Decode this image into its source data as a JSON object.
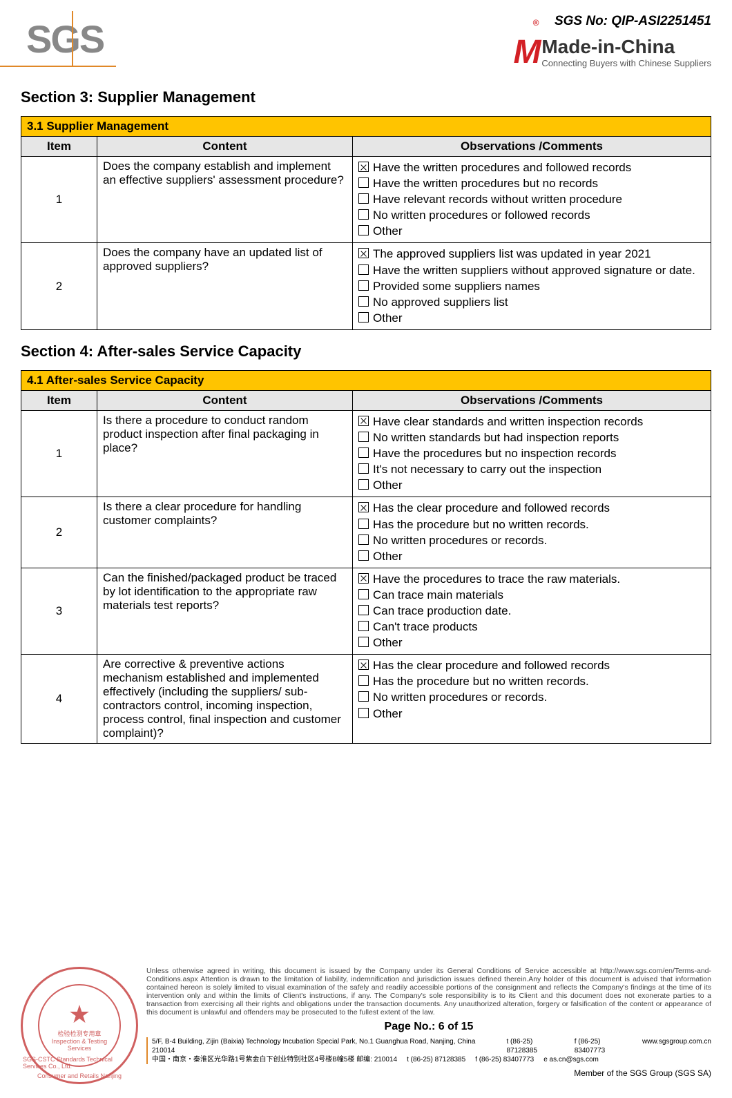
{
  "colors": {
    "accent": "#ffc400",
    "header_gray": "#e6e6e6",
    "sgs_gray": "#888888",
    "orange_rule": "#e08828",
    "mic_red": "#d32025",
    "seal_red": "#d06060"
  },
  "doc_no_label": "SGS No: QIP-ASI2251451",
  "sgs_logo_text": "SGS",
  "mic": {
    "main": "Made-in-China",
    "sub": "Connecting Buyers with Chinese Suppliers",
    "m": "M",
    "r": "®"
  },
  "section3": {
    "title": "Section 3: Supplier Management",
    "table_title": "3.1 Supplier Management",
    "headers": {
      "item": "Item",
      "content": "Content",
      "obs": "Observations /Comments"
    },
    "rows": [
      {
        "item": "1",
        "content": "Does the company establish and implement an effective suppliers' assessment procedure?",
        "options": [
          {
            "checked": true,
            "label": "Have the written procedures and followed records"
          },
          {
            "checked": false,
            "label": "Have the written procedures but no records"
          },
          {
            "checked": false,
            "label": "Have relevant records without written procedure"
          },
          {
            "checked": false,
            "label": "No written procedures or followed records"
          },
          {
            "checked": false,
            "label": "Other"
          }
        ]
      },
      {
        "item": "2",
        "content": "Does the company have an updated list of approved suppliers?",
        "options": [
          {
            "checked": true,
            "label": "The approved suppliers list was updated in year 2021"
          },
          {
            "checked": false,
            "label": "Have the written suppliers without approved signature or date."
          },
          {
            "checked": false,
            "label": "Provided some suppliers names"
          },
          {
            "checked": false,
            "label": "No approved suppliers list"
          },
          {
            "checked": false,
            "label": "Other"
          }
        ]
      }
    ]
  },
  "section4": {
    "title": "Section 4: After-sales Service Capacity",
    "table_title": "4.1 After-sales Service Capacity",
    "headers": {
      "item": "Item",
      "content": "Content",
      "obs": "Observations /Comments"
    },
    "rows": [
      {
        "item": "1",
        "content": "Is there a procedure to conduct random product inspection after final packaging in place?",
        "options": [
          {
            "checked": true,
            "label": "Have clear standards and written inspection records"
          },
          {
            "checked": false,
            "label": "No written standards but had inspection reports"
          },
          {
            "checked": false,
            "label": "Have the procedures but no inspection records"
          },
          {
            "checked": false,
            "label": "It's not necessary to carry out the inspection"
          },
          {
            "checked": false,
            "label": "Other"
          }
        ]
      },
      {
        "item": "2",
        "content": "Is there a clear procedure for handling customer complaints?",
        "options": [
          {
            "checked": true,
            "label": "Has the clear procedure and followed records"
          },
          {
            "checked": false,
            "label": "Has the procedure but no written records."
          },
          {
            "checked": false,
            "label": "No written procedures or records."
          },
          {
            "checked": false,
            "label": "Other"
          }
        ]
      },
      {
        "item": "3",
        "content": "Can the finished/packaged product be traced by lot identification to the appropriate raw materials test reports?",
        "options": [
          {
            "checked": true,
            "label": "Have the procedures to trace the raw materials."
          },
          {
            "checked": false,
            "label": "Can trace main materials"
          },
          {
            "checked": false,
            "label": "Can trace production date."
          },
          {
            "checked": false,
            "label": "Can't trace products"
          },
          {
            "checked": false,
            "label": "Other"
          }
        ]
      },
      {
        "item": "4",
        "content": "Are corrective & preventive actions mechanism established and implemented effectively (including the suppliers/ sub-contractors control, incoming inspection, process control, final inspection and customer complaint)?",
        "options": [
          {
            "checked": true,
            "label": "Has the clear procedure and followed records"
          },
          {
            "checked": false,
            "label": "Has the procedure but no written records."
          },
          {
            "checked": false,
            "label": "No written procedures or records."
          },
          {
            "checked": false,
            "label": "Other"
          }
        ]
      }
    ]
  },
  "footer": {
    "disclaimer": "Unless otherwise agreed in writing, this document is issued by the Company under its General Conditions of Service accessible at http://www.sgs.com/en/Terms-and-Conditions.aspx Attention is drawn to the limitation of liability, indemnification and jurisdiction issues defined therein.Any holder of this document is advised that information contained hereon is solely limited to visual examination of the safely and readily accessible portions of the consignment and reflects the Company's findings at the time of its intervention only and within the limits of Client's instructions, if any. The Company's sole responsibility is to its Client and this document does not exonerate parties to a transaction from exercising all their rights and obligations under the transaction documents. Any unauthorized alteration, forgery or falsification of the content or appearance of this document is unlawful and offenders may be prosecuted to the fullest extent of the law.",
    "disclaimer_link_text": "http://www.sgs.com/en/Terms-and-Conditions.aspx",
    "page_no": "Page No.:  6  of  15",
    "addr_en": "5/F, B-4 Building, Zijin (Baixia) Technology Incubation Special Park, No.1 Guanghua Road, Nanjing, China  210014",
    "addr_cn": "中国・南京・秦淮区光华路1号紫金白下创业特别社区4号楼B幢5楼  邮编: 210014",
    "tel1": "t  (86-25) 87128385",
    "tel2": "t  (86-25) 87128385",
    "fax1": "f  (86-25) 83407773",
    "fax2": "f  (86-25) 83407773",
    "web": "www.sgsgroup.com.cn",
    "email": "e  as.cn@sgs.com",
    "member": "Member of the SGS Group (SGS SA)",
    "seal": {
      "cn": "检验检测专用章",
      "en": "Inspection & Testing Services",
      "company": "SGS-CSTC Standards Technical Services Co., Ltd.",
      "bottom": "Consumer and Retails Nanjing"
    }
  }
}
